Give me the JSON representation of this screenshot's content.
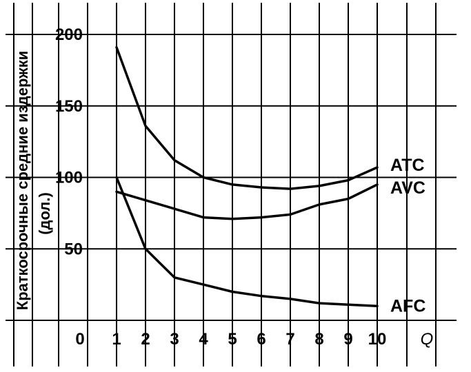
{
  "chart_data": {
    "type": "line",
    "title": "",
    "ylabel_line1": "Краткосрочные средние издержки",
    "ylabel_line2": "(дол.)",
    "xlabel": "Q",
    "x_ticks": [
      "0",
      "1",
      "2",
      "3",
      "4",
      "5",
      "6",
      "7",
      "8",
      "9",
      "10"
    ],
    "y_ticks": [
      "200",
      "150",
      "100",
      "50"
    ],
    "xlim": [
      0,
      10
    ],
    "ylim": [
      0,
      200
    ],
    "grid": true,
    "series": [
      {
        "name": "ATC",
        "x": [
          1,
          2,
          3,
          4,
          5,
          6,
          7,
          8,
          9,
          10
        ],
        "values": [
          191,
          136,
          112,
          100,
          95,
          93,
          92,
          94,
          98,
          107
        ]
      },
      {
        "name": "AVC",
        "x": [
          1,
          2,
          3,
          4,
          5,
          6,
          7,
          8,
          9,
          10
        ],
        "values": [
          90,
          84,
          78,
          72,
          71,
          72,
          74,
          81,
          85,
          95
        ]
      },
      {
        "name": "AFC",
        "x": [
          1,
          2,
          3,
          4,
          5,
          6,
          7,
          8,
          9,
          10
        ],
        "values": [
          100,
          50,
          30,
          25,
          20,
          17,
          15,
          12,
          11,
          10
        ]
      }
    ]
  }
}
